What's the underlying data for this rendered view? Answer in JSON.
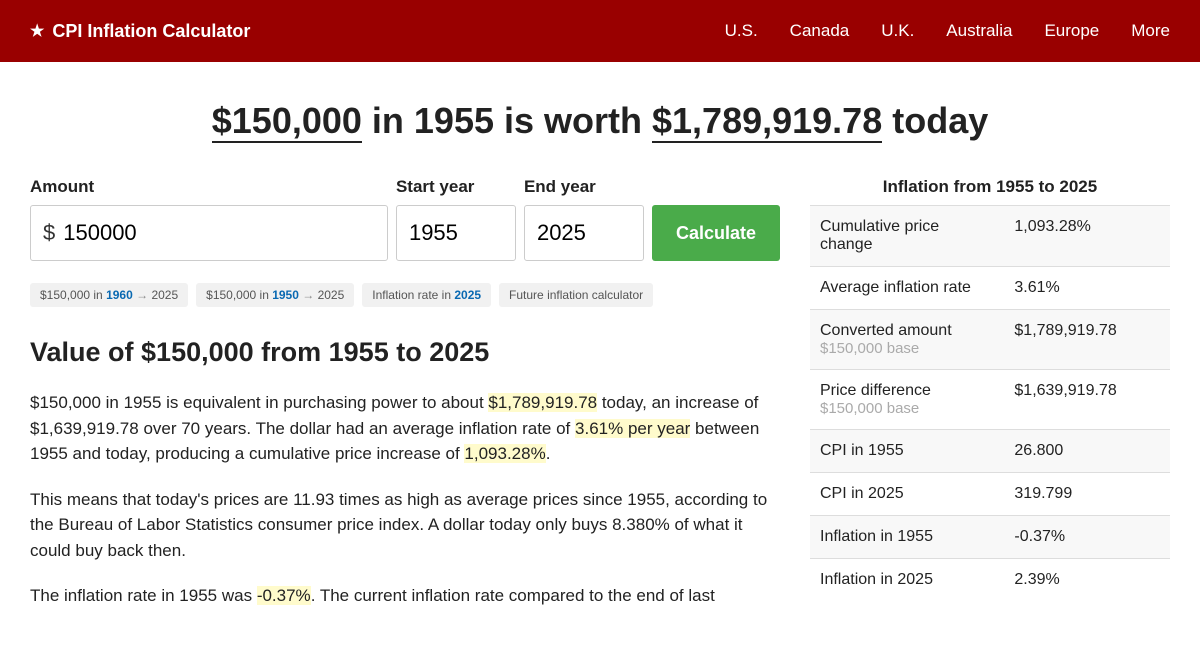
{
  "header": {
    "title": "CPI Inflation Calculator",
    "nav": [
      "U.S.",
      "Canada",
      "U.K.",
      "Australia",
      "Europe",
      "More"
    ]
  },
  "headline": {
    "amount": "$150,000",
    "mid1": " in 1955 is worth ",
    "result": "$1,789,919.78",
    "suffix": " today"
  },
  "form": {
    "amount_label": "Amount",
    "amount_prefix": "$",
    "amount_value": "150000",
    "start_label": "Start year",
    "start_value": "1955",
    "end_label": "End year",
    "end_value": "2025",
    "calc_label": "Calculate"
  },
  "chips": [
    {
      "pre": "$150,000 in ",
      "bold": "1960",
      "arrow": " → ",
      "post": "2025"
    },
    {
      "pre": "$150,000 in ",
      "bold": "1950",
      "arrow": " → ",
      "post": "2025"
    },
    {
      "pre": "Inflation rate in ",
      "bold": "2025",
      "arrow": "",
      "post": ""
    },
    {
      "pre": "Future inflation calculator",
      "bold": "",
      "arrow": "",
      "post": ""
    }
  ],
  "section_title": "Value of $150,000 from 1955 to 2025",
  "para1": {
    "t1": "$150,000 in 1955 is equivalent in purchasing power to about ",
    "h1": "$1,789,919.78",
    "t2": " today, an increase of $1,639,919.78 over 70 years. The dollar had an average inflation rate of ",
    "h2": "3.61% per year",
    "t3": " between 1955 and today, producing a cumulative price increase of ",
    "h3": "1,093.28%",
    "t4": "."
  },
  "para2": "This means that today's prices are 11.93 times as high as average prices since 1955, according to the Bureau of Labor Statistics consumer price index. A dollar today only buys 8.380% of what it could buy back then.",
  "para3": {
    "t1": "The inflation rate in 1955 was ",
    "h1": "-0.37%",
    "t2": ". The current inflation rate compared to the end of last"
  },
  "sidebar": {
    "title": "Inflation from 1955 to 2025",
    "rows": [
      {
        "label": "Cumulative price change",
        "sub": "",
        "value": "1,093.28%"
      },
      {
        "label": "Average inflation rate",
        "sub": "",
        "value": "3.61%"
      },
      {
        "label": "Converted amount",
        "sub": "$150,000 base",
        "value": "$1,789,919.78"
      },
      {
        "label": "Price difference",
        "sub": "$150,000 base",
        "value": "$1,639,919.78"
      },
      {
        "label": "CPI in 1955",
        "sub": "",
        "value": "26.800"
      },
      {
        "label": "CPI in 2025",
        "sub": "",
        "value": "319.799"
      },
      {
        "label": "Inflation in 1955",
        "sub": "",
        "value": "-0.37%"
      },
      {
        "label": "Inflation in 2025",
        "sub": "",
        "value": "2.39%"
      }
    ]
  }
}
